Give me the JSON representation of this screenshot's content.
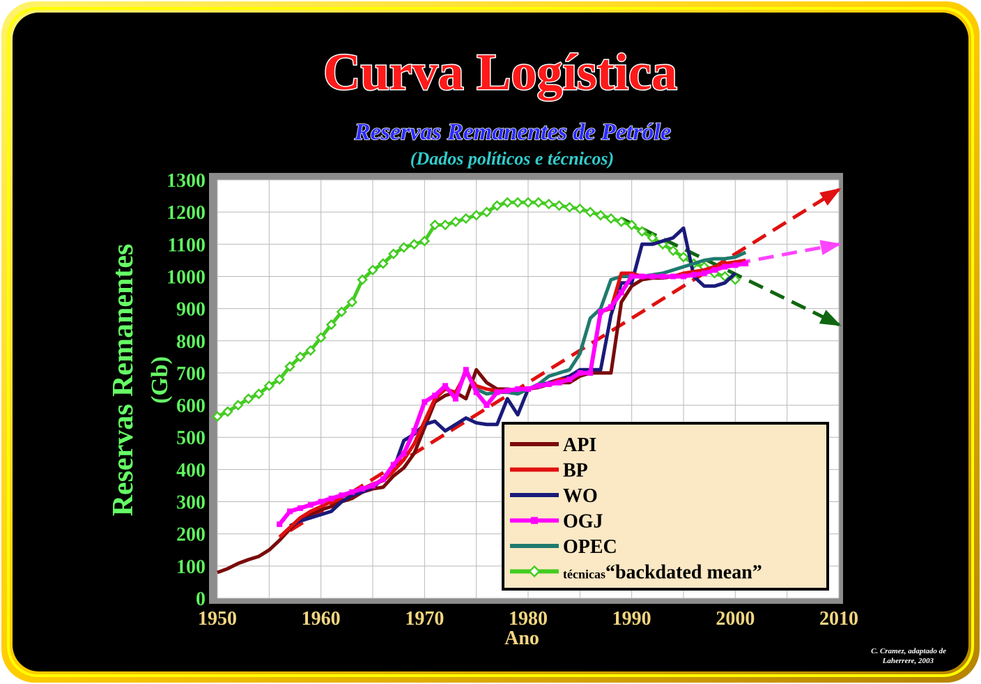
{
  "title": "Curva Logística",
  "subtitle": "Reservas Remanentes de Petróle",
  "subtitle2": "(Dados políticos e técnicos)",
  "credit_line1": "C. Cramez, adaptado de",
  "credit_line2": "Laherrere, 2003",
  "colors": {
    "background": "#000000",
    "frame_outer": "#c8a200",
    "frame_inner": "#ffff00",
    "title": "#ff1a1a",
    "subtitle": "#2b2bff",
    "subtitle2": "#33cccc",
    "axis_text_y": "#66ff66",
    "axis_text_x": "#f2d680",
    "legend_bg": "#fbe8c4"
  },
  "chart_data": {
    "type": "line",
    "xlabel": "Ano",
    "ylabel": "Reservas Remanentes",
    "ylabel_unit": "(Gb)",
    "xlim": [
      1950,
      2010
    ],
    "ylim": [
      0,
      1300
    ],
    "xticks": [
      "1950",
      "1960",
      "1970",
      "1980",
      "1990",
      "2000",
      "2010"
    ],
    "yticks": [
      "0",
      "100",
      "200",
      "300",
      "400",
      "500",
      "600",
      "700",
      "800",
      "900",
      "1000",
      "1100",
      "1200",
      "1300"
    ],
    "grid": true,
    "legend_position": "bottom-right",
    "series": [
      {
        "name": "API",
        "color": "#7a0a0a",
        "marker": "none",
        "x": [
          1950,
          1951,
          1952,
          1953,
          1954,
          1955,
          1956,
          1957,
          1958,
          1959,
          1960,
          1961,
          1962,
          1963,
          1964,
          1965,
          1966,
          1967,
          1968,
          1969,
          1970,
          1971,
          1972,
          1973,
          1974,
          1975,
          1976,
          1977,
          1978,
          1979,
          1980,
          1981,
          1982,
          1983,
          1984,
          1985,
          1986,
          1987,
          1988,
          1989,
          1990,
          1991,
          1992,
          1993,
          1994,
          1995,
          1996,
          1997,
          1998,
          1999,
          2000
        ],
        "y": [
          80,
          92,
          108,
          120,
          130,
          150,
          180,
          215,
          245,
          260,
          275,
          285,
          300,
          310,
          330,
          340,
          345,
          380,
          405,
          450,
          530,
          610,
          630,
          640,
          620,
          710,
          670,
          650,
          650,
          645,
          650,
          655,
          665,
          670,
          670,
          690,
          700,
          700,
          700,
          920,
          970,
          990,
          995,
          995,
          1000,
          1005,
          1010,
          1020,
          1030,
          1040,
          1045
        ]
      },
      {
        "name": "BP",
        "color": "#e01010",
        "marker": "none",
        "x": [
          1956,
          1957,
          1958,
          1959,
          1960,
          1961,
          1962,
          1963,
          1964,
          1965,
          1966,
          1967,
          1968,
          1969,
          1970,
          1971,
          1972,
          1973,
          1974,
          1975,
          1976,
          1977,
          1978,
          1979,
          1980,
          1981,
          1982,
          1983,
          1984,
          1985,
          1986,
          1987,
          1988,
          1989,
          1990,
          1991,
          1992,
          1993,
          1994,
          1995,
          1996,
          1997,
          1998,
          1999,
          2000,
          2001
        ],
        "y": [
          190,
          220,
          250,
          270,
          285,
          300,
          315,
          330,
          340,
          355,
          365,
          395,
          430,
          480,
          550,
          620,
          650,
          640,
          700,
          660,
          650,
          645,
          645,
          650,
          650,
          660,
          665,
          680,
          680,
          700,
          700,
          890,
          900,
          1010,
          1010,
          1000,
          1000,
          1000,
          1000,
          1010,
          1015,
          1020,
          1030,
          1040,
          1045,
          1050
        ]
      },
      {
        "name": "WO",
        "color": "#1a1a7a",
        "marker": "none",
        "x": [
          1957,
          1958,
          1959,
          1960,
          1961,
          1962,
          1963,
          1964,
          1965,
          1966,
          1967,
          1968,
          1969,
          1970,
          1971,
          1972,
          1973,
          1974,
          1975,
          1976,
          1977,
          1978,
          1979,
          1980,
          1981,
          1982,
          1983,
          1984,
          1985,
          1986,
          1987,
          1988,
          1989,
          1990,
          1991,
          1992,
          1993,
          1994,
          1995,
          1996,
          1997,
          1998,
          1999,
          2000
        ],
        "y": [
          225,
          240,
          250,
          260,
          270,
          300,
          320,
          330,
          345,
          370,
          400,
          490,
          510,
          540,
          550,
          520,
          540,
          560,
          545,
          540,
          540,
          620,
          570,
          650,
          660,
          670,
          680,
          690,
          710,
          710,
          710,
          880,
          980,
          980,
          1100,
          1100,
          1110,
          1120,
          1150,
          1000,
          970,
          970,
          980,
          1010
        ]
      },
      {
        "name": "OGJ",
        "color": "#ff00ff",
        "marker": "square",
        "x": [
          1956,
          1957,
          1958,
          1959,
          1960,
          1961,
          1962,
          1963,
          1964,
          1965,
          1966,
          1967,
          1968,
          1969,
          1970,
          1971,
          1972,
          1973,
          1974,
          1975,
          1976,
          1977,
          1978,
          1979,
          1980,
          1981,
          1982,
          1983,
          1984,
          1985,
          1986,
          1987,
          1988,
          1989,
          1990,
          1991,
          1992,
          1993,
          1994,
          1995,
          1996,
          1997,
          1998,
          1999,
          2000,
          2001
        ],
        "y": [
          230,
          270,
          280,
          290,
          300,
          310,
          320,
          330,
          340,
          350,
          370,
          415,
          450,
          520,
          610,
          630,
          660,
          620,
          710,
          640,
          600,
          640,
          645,
          650,
          650,
          660,
          665,
          670,
          680,
          700,
          700,
          890,
          905,
          950,
          1000,
          1000,
          1000,
          1000,
          1000,
          1000,
          1005,
          1010,
          1020,
          1030,
          1035,
          1040
        ]
      },
      {
        "name": "OPEC",
        "color": "#1f7a6e",
        "marker": "none",
        "x": [
          1975,
          1976,
          1977,
          1978,
          1979,
          1980,
          1981,
          1982,
          1983,
          1984,
          1985,
          1986,
          1987,
          1988,
          1989,
          1990,
          1991,
          1992,
          1993,
          1994,
          1995,
          1996,
          1997,
          1998,
          1999,
          2000,
          2001
        ],
        "y": [
          650,
          635,
          640,
          640,
          635,
          650,
          665,
          690,
          700,
          710,
          760,
          870,
          900,
          990,
          1000,
          1000,
          1000,
          1005,
          1010,
          1020,
          1030,
          1040,
          1050,
          1055,
          1055,
          1060,
          1075
        ]
      },
      {
        "name": "técnicas“backdated mean”",
        "color": "#44cc22",
        "marker": "diamond",
        "x": [
          1950,
          1951,
          1952,
          1953,
          1954,
          1955,
          1956,
          1957,
          1958,
          1959,
          1960,
          1961,
          1962,
          1963,
          1964,
          1965,
          1966,
          1967,
          1968,
          1969,
          1970,
          1971,
          1972,
          1973,
          1974,
          1975,
          1976,
          1977,
          1978,
          1979,
          1980,
          1981,
          1982,
          1983,
          1984,
          1985,
          1986,
          1987,
          1988,
          1989,
          1990,
          1991,
          1992,
          1993,
          1994,
          1995,
          1996,
          1997,
          1998,
          1999,
          2000
        ],
        "y": [
          565,
          580,
          600,
          620,
          635,
          660,
          680,
          720,
          750,
          770,
          810,
          850,
          890,
          920,
          990,
          1020,
          1040,
          1070,
          1090,
          1100,
          1110,
          1160,
          1160,
          1170,
          1180,
          1190,
          1200,
          1220,
          1230,
          1230,
          1230,
          1230,
          1225,
          1220,
          1215,
          1210,
          1200,
          1190,
          1180,
          1170,
          1160,
          1140,
          1120,
          1100,
          1080,
          1060,
          1040,
          1030,
          1010,
          1000,
          990
        ]
      }
    ],
    "trend_arrows": [
      {
        "color": "#e01010",
        "x": [
          1957,
          2010
        ],
        "y": [
          210,
          1270
        ]
      },
      {
        "color": "#ff44ff",
        "x": [
          2000,
          2010
        ],
        "y": [
          1040,
          1100
        ]
      },
      {
        "color": "#116611",
        "x": [
          1989,
          2010
        ],
        "y": [
          1180,
          850
        ]
      }
    ]
  }
}
